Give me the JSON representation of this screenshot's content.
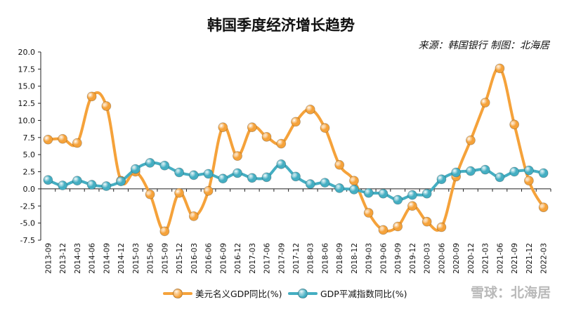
{
  "header": {
    "title": "韩国季度经济增长趋势",
    "source": "来源：韩国银行  制图：北海居"
  },
  "watermark": "雪球：北海居",
  "chart_data": {
    "type": "line",
    "categories": [
      "2013-09",
      "2013-12",
      "2014-03",
      "2014-06",
      "2014-09",
      "2014-12",
      "2015-03",
      "2015-06",
      "2015-09",
      "2015-12",
      "2016-03",
      "2016-06",
      "2016-09",
      "2016-12",
      "2017-03",
      "2017-06",
      "2017-09",
      "2017-12",
      "2018-03",
      "2018-06",
      "2018-09",
      "2018-12",
      "2019-03",
      "2019-06",
      "2019-09",
      "2019-12",
      "2020-03",
      "2020-06",
      "2020-09",
      "2020-12",
      "2021-03",
      "2021-06",
      "2021-09",
      "2021-12",
      "2022-03"
    ],
    "ylim": [
      -7.5,
      20
    ],
    "yticks": [
      "20.0",
      "17.5",
      "15.0",
      "12.5",
      "10.0",
      "7.5",
      "5.0",
      "2.5",
      "0.0",
      "-2.5",
      "-5.0",
      "-7.5"
    ],
    "grid": false,
    "legend_position": "bottom",
    "series": [
      {
        "name": "美元名义GDP同比(%)",
        "color": "#f5a23a",
        "values": [
          7.2,
          7.3,
          6.7,
          13.5,
          12.1,
          1.2,
          2.5,
          -0.8,
          -6.2,
          -0.6,
          -4.0,
          -0.3,
          9.0,
          4.8,
          9.0,
          7.6,
          6.6,
          9.8,
          11.6,
          8.9,
          3.5,
          1.2,
          -3.5,
          -6.0,
          -5.5,
          -2.5,
          -4.8,
          -5.6,
          1.8,
          7.1,
          12.6,
          17.6,
          9.4,
          1.2,
          -2.7
        ]
      },
      {
        "name": "GDP平减指数同比(%)",
        "color": "#44aec2",
        "values": [
          1.3,
          0.5,
          1.2,
          0.6,
          0.4,
          1.1,
          2.9,
          3.8,
          3.4,
          2.4,
          2.0,
          2.2,
          1.5,
          2.3,
          1.6,
          1.7,
          3.6,
          1.8,
          0.7,
          0.9,
          0.1,
          -0.1,
          -0.6,
          -0.7,
          -1.6,
          -0.9,
          -0.7,
          1.4,
          2.4,
          2.6,
          2.8,
          1.7,
          2.5,
          2.7,
          2.3
        ]
      }
    ]
  }
}
